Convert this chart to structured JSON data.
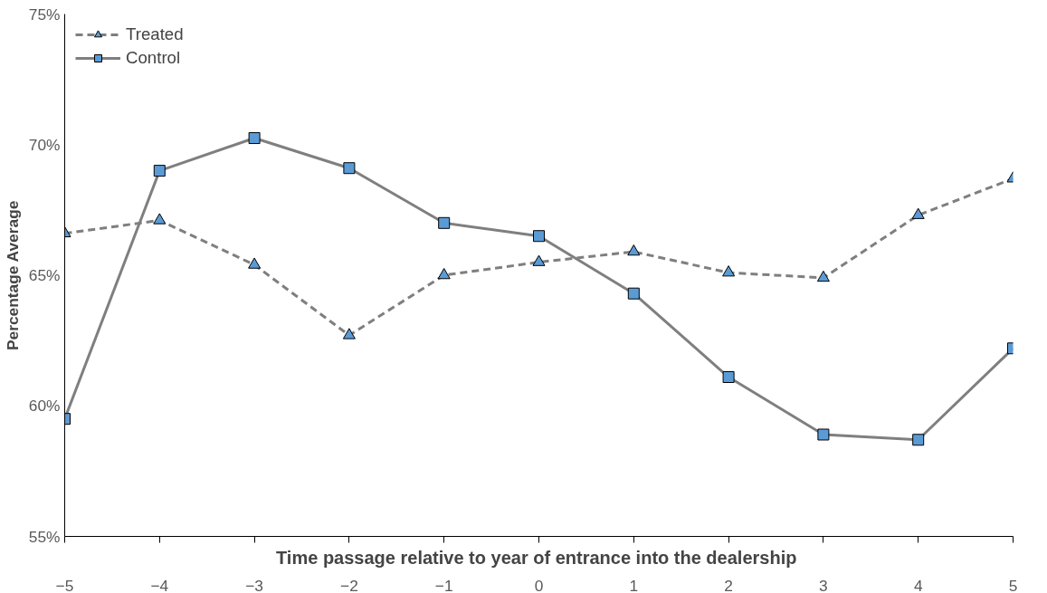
{
  "chart_data": {
    "type": "line",
    "xlabel": "Time passage relative to year of  entrance into the dealership",
    "ylabel": "Percentage Average",
    "x": [
      -5,
      -4,
      -3,
      -2,
      -1,
      0,
      1,
      2,
      3,
      4,
      5
    ],
    "series": [
      {
        "name": "Treated",
        "color": "#5b9bd5",
        "marker": "triangle",
        "line_style": "dashed",
        "values": [
          66.6,
          67.1,
          65.4,
          62.7,
          65.0,
          65.5,
          65.9,
          65.1,
          64.9,
          67.3,
          68.7
        ]
      },
      {
        "name": "Control",
        "color": "#5b9bd5",
        "marker": "square",
        "line_style": "solid",
        "values": [
          59.5,
          69.0,
          70.25,
          69.1,
          67.0,
          66.5,
          64.3,
          61.1,
          58.9,
          58.7,
          62.2
        ]
      }
    ],
    "xlim": [
      -5,
      5
    ],
    "xticks": [
      -5,
      -4,
      -3,
      -2,
      -1,
      0,
      1,
      2,
      3,
      4,
      5
    ],
    "ylim": [
      55,
      75
    ],
    "yticks": [
      {
        "value": 55,
        "label": "55%"
      },
      {
        "value": 60,
        "label": "60%"
      },
      {
        "value": 65,
        "label": "65%"
      },
      {
        "value": 70,
        "label": "70%"
      },
      {
        "value": 75,
        "label": "75%"
      }
    ],
    "grid": false,
    "legend": "top left"
  }
}
